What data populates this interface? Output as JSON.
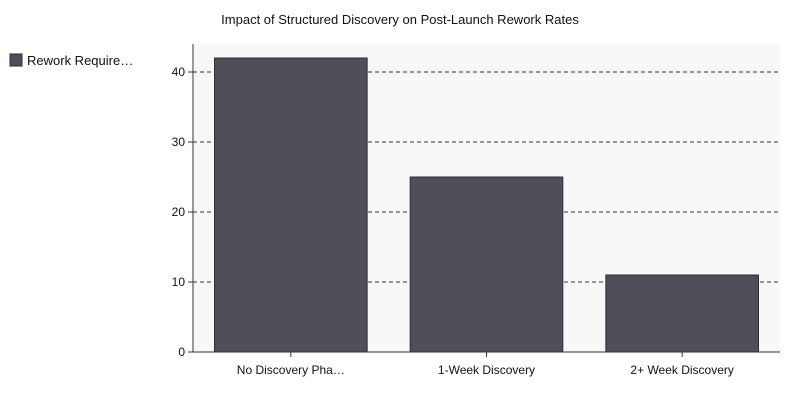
{
  "chart_data": {
    "type": "bar",
    "title": "Impact of Structured Discovery on Post-Launch Rework Rates",
    "xlabel": "",
    "ylabel": "",
    "categories": [
      "No Discovery Pha…",
      "1-Week Discovery",
      "2+ Week Discovery"
    ],
    "series": [
      {
        "name": "Rework Require…",
        "values": [
          42,
          25,
          11
        ]
      }
    ],
    "ylim": [
      0,
      44
    ],
    "yticks": [
      0,
      10,
      20,
      30,
      40
    ],
    "grid": true,
    "legend": "left",
    "colors": {
      "bar": "#524e59",
      "bar_stroke": "#2e2b33",
      "plot_bg": "#f8f8f8",
      "grid": "#333333",
      "axis": "#333333",
      "text": "#111111"
    }
  }
}
